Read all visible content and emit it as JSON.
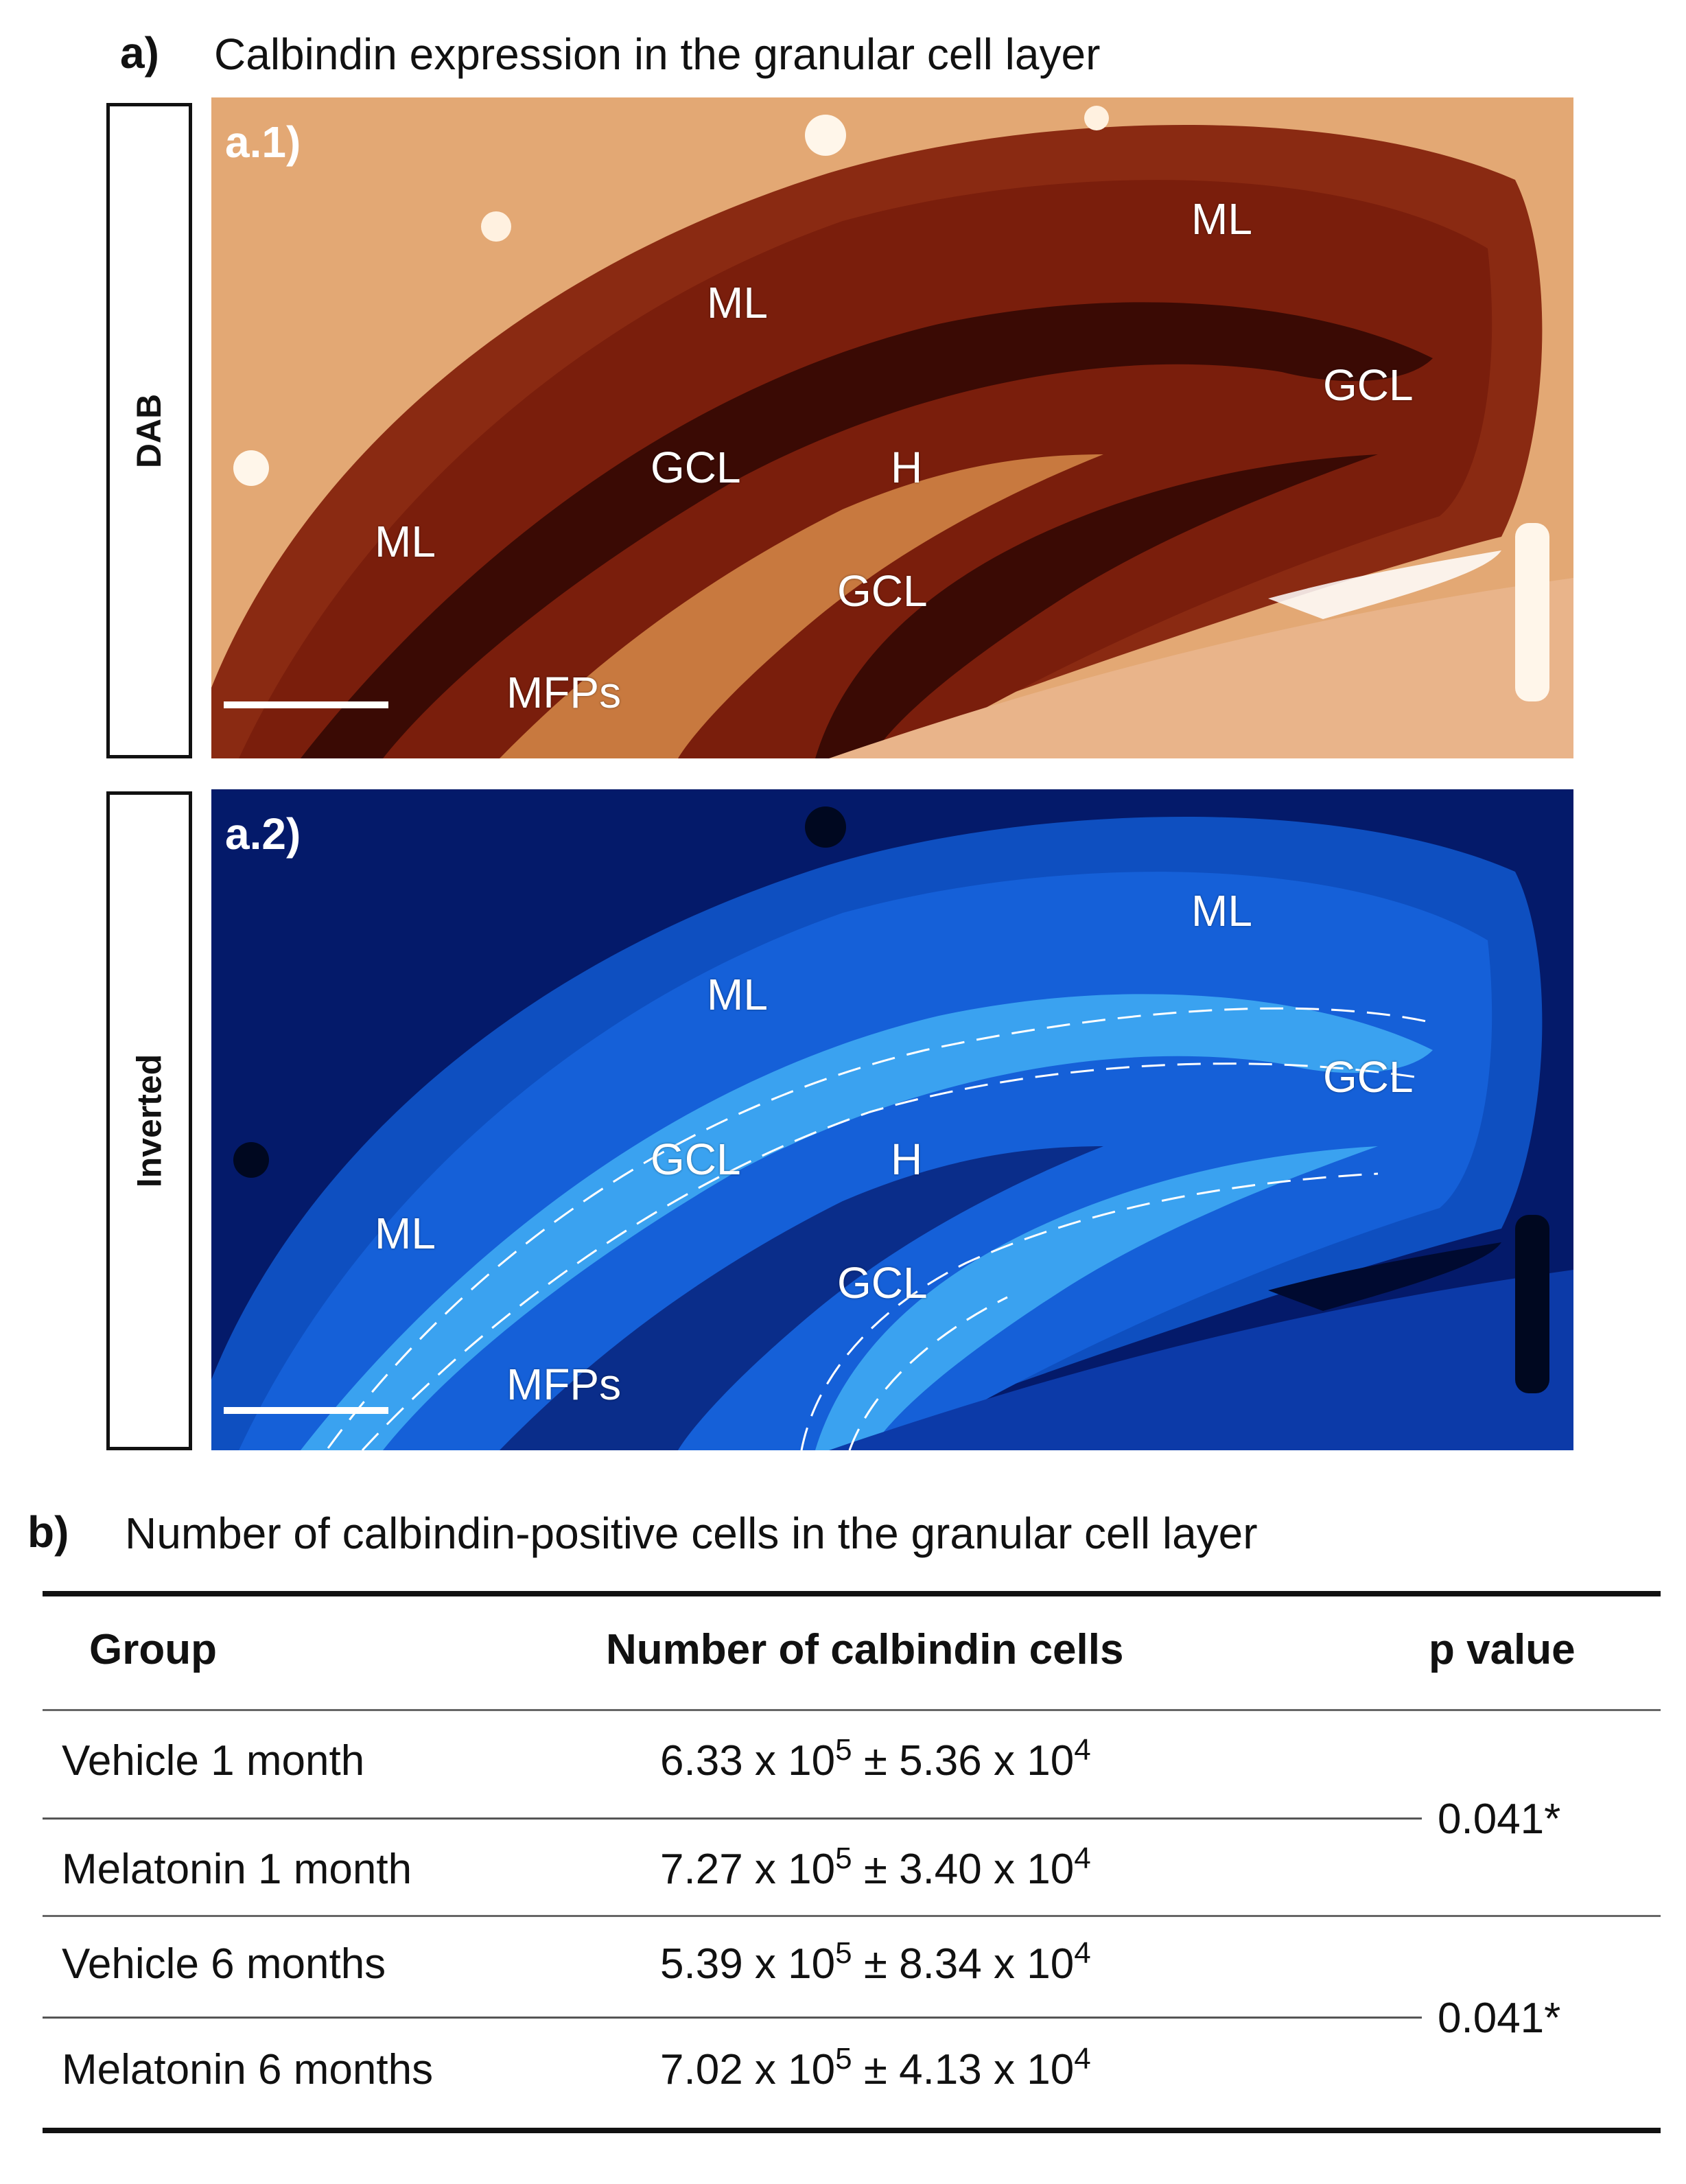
{
  "panel_a": {
    "letter": "a)",
    "title": "Calbindin expression in the granular cell layer",
    "images": [
      {
        "tag": "a.1)",
        "side_label": "DAB",
        "labels": {
          "ml_top": "ML",
          "ml_mid": "ML",
          "ml_left": "ML",
          "gcl_right": "GCL",
          "gcl_mid": "GCL",
          "h": "H",
          "gcl_low": "GCL",
          "mfps": "MFPs"
        }
      },
      {
        "tag": "a.2)",
        "side_label": "Inverted",
        "labels": {
          "ml_top": "ML",
          "ml_mid": "ML",
          "ml_left": "ML",
          "gcl_right": "GCL",
          "gcl_mid": "GCL",
          "h": "H",
          "gcl_low": "GCL",
          "mfps": "MFPs"
        }
      }
    ]
  },
  "panel_b": {
    "letter": "b)",
    "title": "Number of calbindin-positive cells in the granular cell layer",
    "table": {
      "headers": [
        "Group",
        "Number of calbindin cells",
        "p value"
      ],
      "rows": [
        {
          "group": "Vehicle 1 month",
          "mean": "6.33",
          "mean_exp": "5",
          "sd": "5.36",
          "sd_exp": "4"
        },
        {
          "group": "Melatonin 1 month",
          "mean": "7.27",
          "mean_exp": "5",
          "sd": "3.40",
          "sd_exp": "4"
        },
        {
          "group": "Vehicle 6 months",
          "mean": "5.39",
          "mean_exp": "5",
          "sd": "8.34",
          "sd_exp": "4"
        },
        {
          "group": "Melatonin 6 months",
          "mean": "7.02",
          "mean_exp": "5",
          "sd": "4.13",
          "sd_exp": "4"
        }
      ],
      "p_values": [
        "0.041*",
        "0.041*"
      ],
      "times_symbol": "x 10",
      "pm_symbol": "±"
    }
  },
  "colors": {
    "dab_background": "#e3a874",
    "dab_tissue": "#7a1e0c",
    "dab_gcl": "#3a0a04",
    "inverted_background": "#041a6a",
    "inverted_tissue": "#1560d8",
    "inverted_gcl": "#3aa2f0"
  }
}
